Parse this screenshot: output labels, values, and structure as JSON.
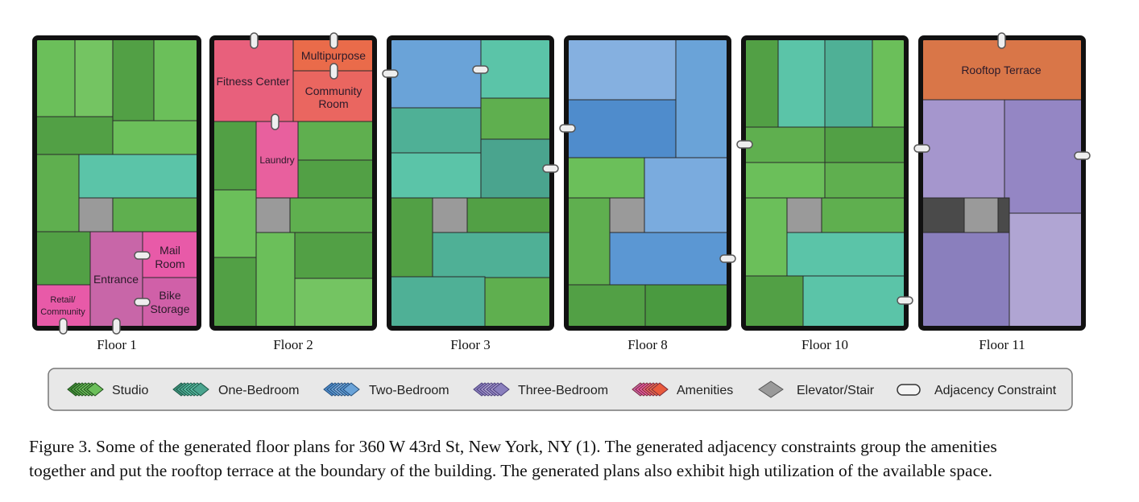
{
  "colors": {
    "studio": [
      "#5faf4f",
      "#6bbf5a",
      "#52a045",
      "#74c462"
    ],
    "one_bedroom": [
      "#5bc4a8",
      "#4fb096",
      "#4aa48e"
    ],
    "two_bedroom": [
      "#6aa3d8",
      "#5b97d3",
      "#85b0e0",
      "#4f8ccc"
    ],
    "three_bedroom": [
      "#a596cd",
      "#9486c4",
      "#8a7fbd",
      "#b0a5d3"
    ],
    "amenity_pink": "#e8607c",
    "amenity_orange": "#ea6b4a",
    "amenity_magenta": "#e85aa8",
    "amenity_purple": "#c866a8",
    "terrace": "#d97648",
    "elevator": "#9a9a9a",
    "dark": "#4a4a4a",
    "outline": "#111111"
  },
  "floors": [
    {
      "label": "Floor 1"
    },
    {
      "label": "Floor 2"
    },
    {
      "label": "Floor 3"
    },
    {
      "label": "Floor 8"
    },
    {
      "label": "Floor 10"
    },
    {
      "label": "Floor 11"
    }
  ],
  "rooms": {
    "retail_community": [
      "Retail/",
      "Community"
    ],
    "entrance": "Entrance",
    "mail_room": [
      "Mail",
      "Room"
    ],
    "bike_storage": [
      "Bike",
      "Storage"
    ],
    "fitness_center": "Fitness Center",
    "multipurpose": "Multipurpose",
    "community_room": [
      "Community",
      "Room"
    ],
    "laundry": "Laundry",
    "rooftop_terrace": "Rooftop Terrace"
  },
  "legend": {
    "studio": "Studio",
    "one_bedroom": "One-Bedroom",
    "two_bedroom": "Two-Bedroom",
    "three_bedroom": "Three-Bedroom",
    "amenities": "Amenities",
    "elevator_stair": "Elevator/Stair",
    "adjacency": "Adjacency Constraint"
  },
  "caption": {
    "line1": "Figure 3. Some of the generated floor plans for 360 W 43rd St, New York, NY (1). The generated adjacency constraints group the amenities",
    "line2": "together and put the rooftop terrace at the boundary of the building. The generated plans also exhibit high utilization of the available space."
  }
}
